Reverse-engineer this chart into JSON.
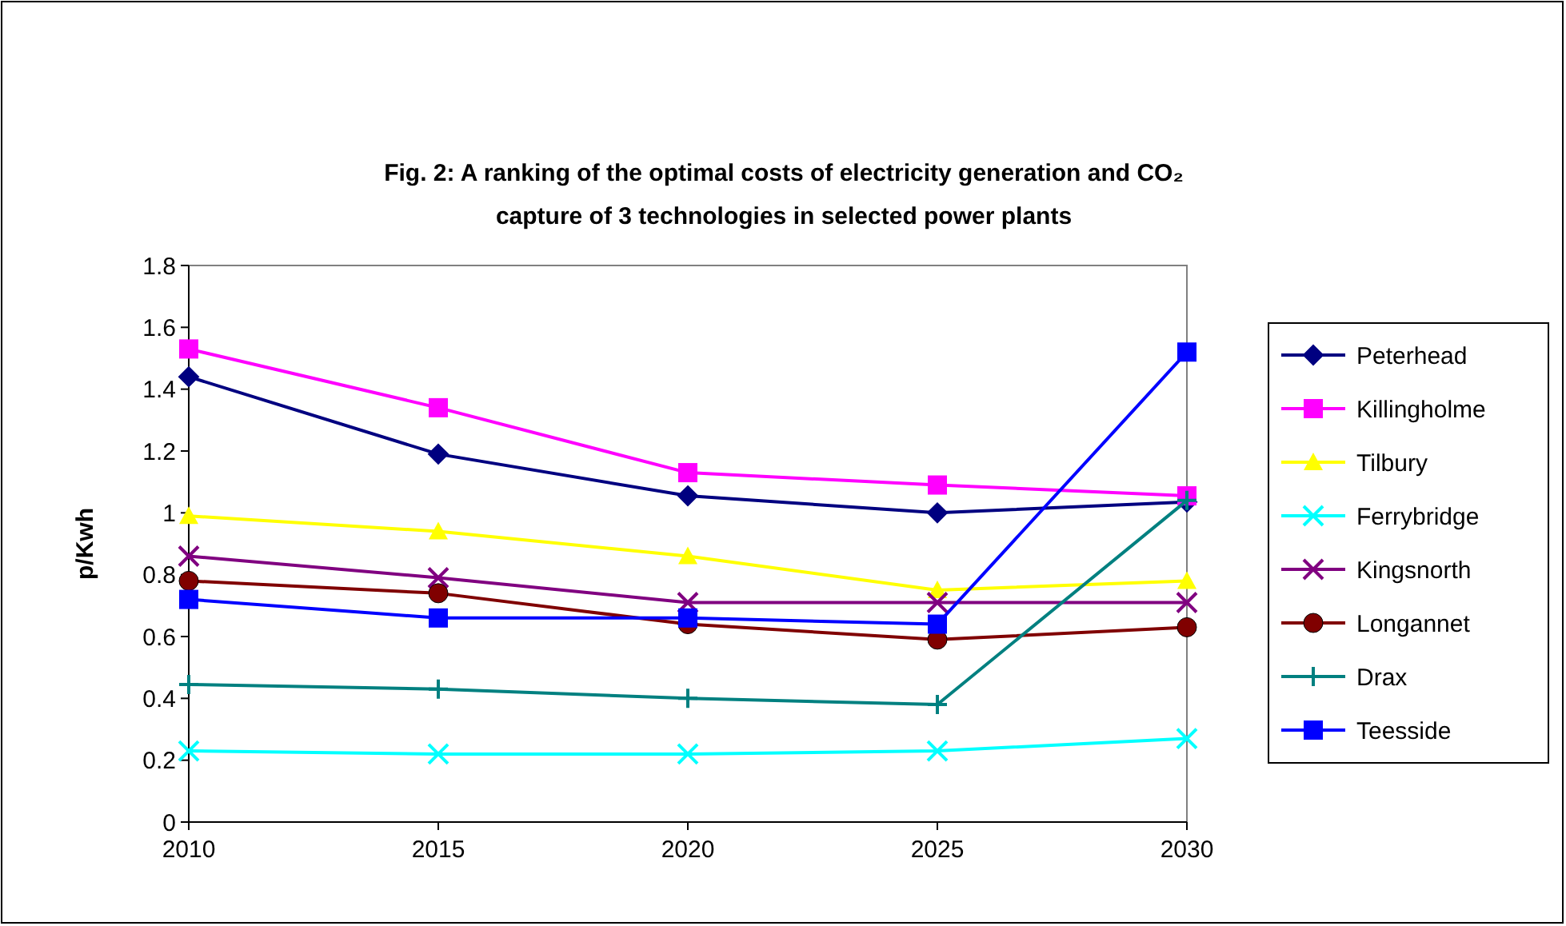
{
  "chart_data": {
    "type": "line",
    "title": "Fig. 2: A ranking of the optimal costs of electricity generation and CO₂ capture of 3 technologies in selected power plants",
    "ylabel": "p/Kwh",
    "x": [
      2010,
      2015,
      2020,
      2025,
      2030
    ],
    "xlim": [
      2010,
      2030
    ],
    "xticks": [
      2010,
      2015,
      2020,
      2025,
      2030
    ],
    "ylim": [
      0,
      1.8
    ],
    "yticks": [
      0,
      0.2,
      0.4,
      0.6,
      0.8,
      1,
      1.2,
      1.4,
      1.6,
      1.8
    ],
    "grid": false,
    "legend": "right",
    "series": [
      {
        "name": "Peterhead",
        "color": "#000080",
        "marker": "diamond",
        "values": [
          1.44,
          1.19,
          1.055,
          1.0,
          1.035
        ]
      },
      {
        "name": "Killingholme",
        "color": "#ff00ff",
        "marker": "square",
        "values": [
          1.53,
          1.34,
          1.13,
          1.09,
          1.055
        ]
      },
      {
        "name": "Tilbury",
        "color": "#ffff00",
        "marker": "triangle",
        "values": [
          0.99,
          0.94,
          0.86,
          0.75,
          0.78
        ]
      },
      {
        "name": "Ferrybridge",
        "color": "#00ffff",
        "marker": "cross",
        "values": [
          0.23,
          0.22,
          0.22,
          0.23,
          0.27
        ]
      },
      {
        "name": "Kingsnorth",
        "color": "#800080",
        "marker": "cross",
        "values": [
          0.86,
          0.79,
          0.71,
          0.71,
          0.71
        ]
      },
      {
        "name": "Longannet",
        "color": "#800000",
        "marker": "circle",
        "values": [
          0.78,
          0.74,
          0.64,
          0.59,
          0.63
        ]
      },
      {
        "name": "Drax",
        "color": "#008080",
        "marker": "plus",
        "values": [
          0.445,
          0.43,
          0.4,
          0.38,
          1.04
        ]
      },
      {
        "name": "Teesside",
        "color": "#0000ff",
        "marker": "square",
        "values": [
          0.72,
          0.66,
          0.66,
          0.64,
          1.52
        ]
      }
    ]
  }
}
